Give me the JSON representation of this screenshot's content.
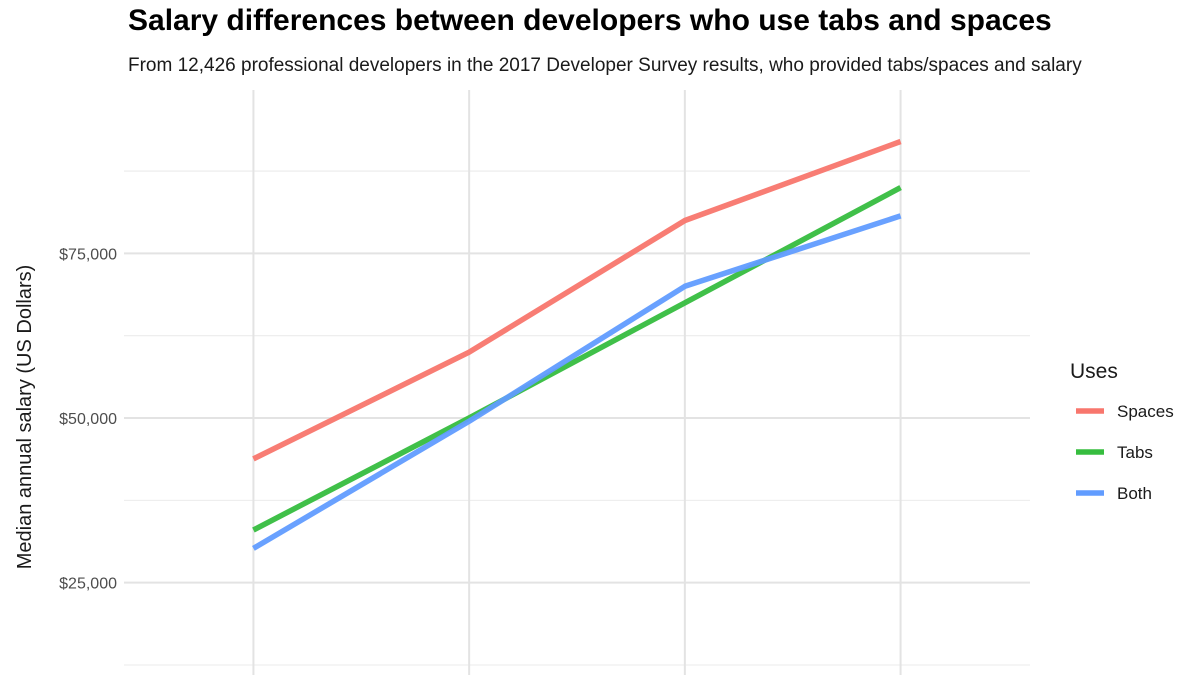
{
  "chart_data": {
    "type": "line",
    "title": "Salary differences between developers who use tabs and spaces",
    "subtitle": "From 12,426 professional developers in the 2017 Developer Survey results, who provided tabs/spaces and salary",
    "xlabel": "",
    "ylabel": "Median annual salary (US Dollars)",
    "x": [
      1,
      2,
      3,
      4
    ],
    "xlim": [
      0.4,
      4.6
    ],
    "ylim": [
      12500,
      94500
    ],
    "y_ticks": [
      {
        "value": 25000,
        "label": "$25,000"
      },
      {
        "value": 50000,
        "label": "$50,000"
      },
      {
        "value": 75000,
        "label": "$75,000"
      }
    ],
    "y_minor_ticks": [
      12500,
      37500,
      62500,
      87500
    ],
    "grid": true,
    "legend": {
      "title": "Uses",
      "position": "right"
    },
    "series": [
      {
        "name": "Spaces",
        "color": "#F8766D",
        "values": [
          43800,
          60000,
          80000,
          92000
        ]
      },
      {
        "name": "Tabs",
        "color": "#36BD3F",
        "values": [
          33000,
          50000,
          67500,
          85000
        ]
      },
      {
        "name": "Both",
        "color": "#619CFF",
        "values": [
          30200,
          49500,
          70000,
          80700
        ]
      }
    ]
  }
}
